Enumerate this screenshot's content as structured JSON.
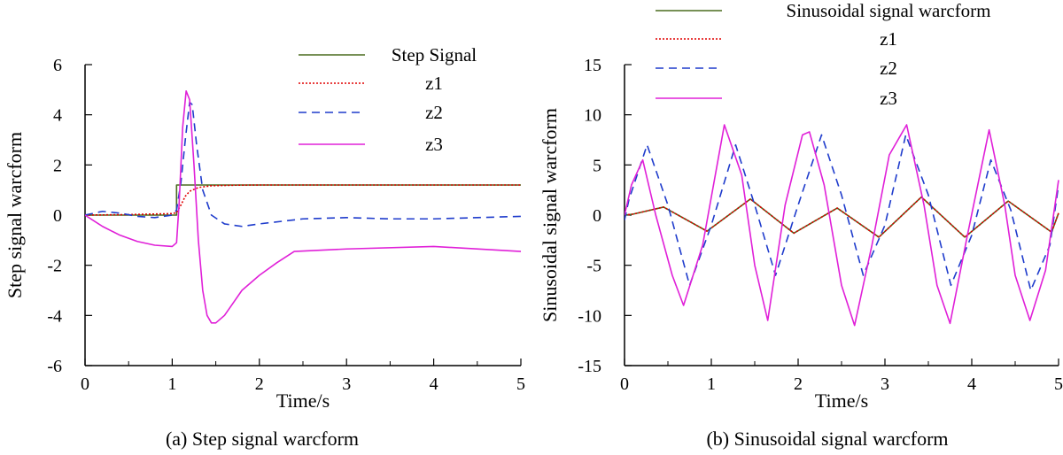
{
  "figure": {
    "panels": [
      {
        "caption": "(a) Step signal warcform"
      },
      {
        "caption": "(b) Sinusoidal signal warcform"
      }
    ]
  },
  "chart_data": [
    {
      "type": "line",
      "title": "",
      "caption": "(a) Step signal warcform",
      "xlabel": "Time/s",
      "ylabel": "Step signal warcform",
      "xlim": [
        0,
        5
      ],
      "ylim": [
        -6,
        6
      ],
      "xticks": [
        0,
        1,
        2,
        3,
        4,
        5
      ],
      "yticks": [
        -6,
        -4,
        -2,
        0,
        2,
        4,
        6
      ],
      "grid": false,
      "legend_position": "top-right",
      "series": [
        {
          "name": "Step Signal",
          "color": "#4a6b1f",
          "dash": "solid",
          "x": [
            0,
            1.05,
            1.05,
            5
          ],
          "y": [
            0,
            0,
            1.2,
            1.2
          ]
        },
        {
          "name": "z1",
          "color": "#e00000",
          "dash": "dotted",
          "x": [
            0,
            0.5,
            1.0,
            1.05,
            1.1,
            1.15,
            1.2,
            1.3,
            1.45,
            1.7,
            2.0,
            3.0,
            5.0
          ],
          "y": [
            0,
            0.02,
            0.06,
            0.1,
            0.4,
            0.75,
            0.95,
            1.1,
            1.17,
            1.19,
            1.2,
            1.2,
            1.2
          ]
        },
        {
          "name": "z2",
          "color": "#1f3ccc",
          "dash": "dashed",
          "x": [
            0,
            0.2,
            0.4,
            0.6,
            0.8,
            1.0,
            1.05,
            1.1,
            1.15,
            1.2,
            1.23,
            1.28,
            1.35,
            1.45,
            1.6,
            1.8,
            2.0,
            2.5,
            3.0,
            3.5,
            4.0,
            4.5,
            5.0
          ],
          "y": [
            0,
            0.15,
            0.08,
            -0.05,
            -0.1,
            0.0,
            0.2,
            1.3,
            3.0,
            4.5,
            4.4,
            2.8,
            1.0,
            0.0,
            -0.35,
            -0.45,
            -0.35,
            -0.15,
            -0.1,
            -0.15,
            -0.15,
            -0.1,
            -0.05
          ]
        },
        {
          "name": "z3",
          "color": "#e020d8",
          "dash": "solid",
          "x": [
            0,
            0.2,
            0.4,
            0.6,
            0.8,
            1.0,
            1.05,
            1.08,
            1.12,
            1.16,
            1.2,
            1.25,
            1.3,
            1.35,
            1.4,
            1.45,
            1.5,
            1.6,
            1.7,
            1.8,
            2.0,
            2.2,
            2.4,
            3.0,
            4.0,
            5.0
          ],
          "y": [
            0,
            -0.45,
            -0.8,
            -1.05,
            -1.2,
            -1.25,
            -1.1,
            0.5,
            3.5,
            4.95,
            4.6,
            2.0,
            -1.0,
            -3.0,
            -4.0,
            -4.3,
            -4.3,
            -4.0,
            -3.5,
            -3.0,
            -2.4,
            -1.9,
            -1.45,
            -1.35,
            -1.25,
            -1.45
          ]
        }
      ]
    },
    {
      "type": "line",
      "title": "",
      "caption": "(b) Sinusoidal signal warcform",
      "xlabel": "Time/s",
      "ylabel": "Sinusoidal signal warcform",
      "xlim": [
        0,
        5
      ],
      "ylim": [
        -15,
        15
      ],
      "xticks": [
        0,
        1,
        2,
        3,
        4,
        5
      ],
      "yticks": [
        -15,
        -10,
        -5,
        0,
        5,
        10,
        15
      ],
      "grid": false,
      "legend_position": "top-left",
      "series": [
        {
          "name": "Sinusoidal signal warcform",
          "color": "#4a6b1f",
          "dash": "solid",
          "x": [
            0,
            0.1,
            0.45,
            0.95,
            1.45,
            1.95,
            2.45,
            2.93,
            3.42,
            3.92,
            4.42,
            4.92,
            5.0
          ],
          "y": [
            0,
            0.1,
            0.8,
            -1.6,
            1.6,
            -1.8,
            0.7,
            -2.2,
            1.8,
            -2.2,
            1.4,
            -1.7,
            0.2
          ]
        },
        {
          "name": "z1",
          "color": "#e00000",
          "dash": "dotted",
          "x": [
            0,
            0.1,
            0.45,
            0.95,
            1.45,
            1.95,
            2.45,
            2.93,
            3.42,
            3.92,
            4.42,
            4.92,
            5.0
          ],
          "y": [
            0,
            0.1,
            0.8,
            -1.6,
            1.6,
            -1.8,
            0.7,
            -2.2,
            1.8,
            -2.2,
            1.4,
            -1.7,
            0.2
          ]
        },
        {
          "name": "z2",
          "color": "#1f3ccc",
          "dash": "dashed",
          "x": [
            0,
            0.05,
            0.26,
            0.5,
            0.75,
            1.0,
            1.28,
            1.5,
            1.74,
            2.0,
            2.27,
            2.5,
            2.75,
            3.0,
            3.24,
            3.5,
            3.76,
            4.0,
            4.22,
            4.45,
            4.68,
            4.9,
            5.0
          ],
          "y": [
            -0.5,
            1.5,
            7.0,
            1.0,
            -7.0,
            -1.0,
            7.0,
            1.0,
            -6.0,
            1.0,
            8.0,
            2.0,
            -6.0,
            -1.0,
            8.0,
            2.0,
            -7.0,
            -2.0,
            5.5,
            0.5,
            -7.5,
            -3.0,
            3.0
          ]
        },
        {
          "name": "z3",
          "color": "#e020d8",
          "dash": "solid",
          "x": [
            0,
            0.08,
            0.21,
            0.36,
            0.55,
            0.68,
            0.9,
            1.15,
            1.35,
            1.5,
            1.65,
            1.85,
            2.05,
            2.13,
            2.3,
            2.5,
            2.65,
            2.85,
            3.05,
            3.25,
            3.45,
            3.6,
            3.75,
            3.95,
            4.2,
            4.38,
            4.5,
            4.67,
            4.85,
            5.0
          ],
          "y": [
            0,
            3.0,
            5.5,
            0.0,
            -6.0,
            -9.0,
            -3.0,
            9.0,
            4.0,
            -5.0,
            -10.5,
            1.0,
            8.0,
            8.3,
            3.0,
            -7.0,
            -11.0,
            -3.0,
            6.0,
            9.0,
            1.0,
            -7.0,
            -10.8,
            -2.0,
            8.5,
            1.0,
            -6.0,
            -10.5,
            -5.5,
            3.5
          ]
        }
      ]
    }
  ]
}
